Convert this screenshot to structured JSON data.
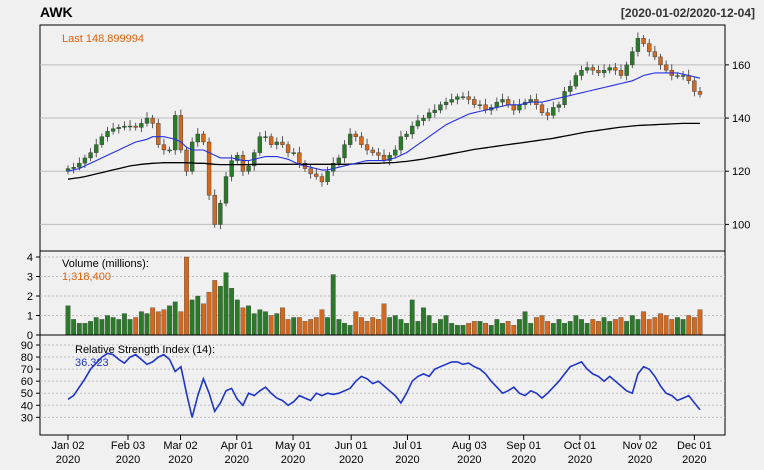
{
  "chart_data": {
    "type": "candlestick",
    "symbol": "AWK",
    "date_range": "[2020-01-02/2020-12-04]",
    "colors": {
      "background": "#f0f0f0",
      "up": "#2a7a2a",
      "down": "#d2691e",
      "sma50": "#2430e0",
      "sma200": "#000000",
      "rsi": "#1f35c8",
      "last_label": "#e0620d",
      "grid": "#bdbdbd"
    },
    "price_panel": {
      "last_label": "Last 148.899994",
      "ylim": [
        90,
        175
      ],
      "y_ticks": [
        100,
        120,
        140,
        160
      ],
      "grid": true,
      "close": [
        121,
        121.5,
        123,
        125,
        127,
        130,
        133,
        135,
        136,
        136.5,
        137,
        137,
        136.5,
        138,
        140,
        138,
        130,
        128,
        128,
        141,
        128,
        120,
        131,
        134,
        131,
        111,
        100,
        108,
        118,
        124,
        126,
        120,
        122,
        127,
        133,
        133,
        130,
        131,
        130,
        127,
        127,
        123,
        121,
        119,
        118,
        116,
        120,
        123,
        125,
        130,
        134,
        133,
        130,
        128,
        127,
        126,
        124,
        126,
        128,
        133,
        134,
        137,
        139,
        140,
        142,
        143,
        145,
        146,
        147,
        148,
        148,
        147,
        145,
        145,
        143,
        144,
        146,
        147,
        145,
        143,
        145,
        146,
        147,
        145,
        142,
        141,
        144,
        145,
        150,
        152,
        156,
        158,
        159,
        158,
        157,
        158,
        159,
        158,
        156,
        160,
        165,
        170,
        168,
        165,
        163,
        160,
        158,
        156,
        156,
        156,
        154,
        150,
        148.9
      ],
      "sma50": [
        120,
        120.5,
        121,
        122,
        123,
        124,
        125,
        126,
        127,
        128,
        129,
        130,
        131,
        131.5,
        132,
        133,
        133,
        133,
        132.5,
        132,
        131,
        129,
        128,
        128,
        128,
        127,
        126,
        125,
        125,
        125,
        124.5,
        124,
        124,
        124.5,
        125,
        125.5,
        125.5,
        125.5,
        125,
        124.5,
        123.5,
        122.5,
        122,
        121.5,
        121,
        120.5,
        120.5,
        121,
        121.5,
        122,
        122.5,
        123,
        123.5,
        124,
        124,
        124,
        124,
        124.5,
        125,
        126,
        127,
        128.5,
        130,
        131.5,
        133,
        134.5,
        136,
        137.5,
        138.5,
        139.5,
        140.5,
        141.5,
        142,
        142.5,
        143,
        143.5,
        144,
        144.5,
        145,
        145,
        145,
        145.5,
        146,
        146,
        146,
        146.5,
        147,
        147.5,
        148,
        148.5,
        149,
        149.5,
        150,
        150.5,
        151,
        151.5,
        152,
        152.5,
        153,
        153.5,
        154,
        155,
        156,
        156.5,
        157,
        157,
        157,
        157,
        157,
        156.5,
        156,
        155.5,
        155
      ],
      "sma200": [
        117,
        117.3,
        117.6,
        118,
        118.5,
        119,
        119.5,
        120,
        120.5,
        121,
        121.5,
        122,
        122.3,
        122.6,
        122.8,
        123,
        123.1,
        123.2,
        123.2,
        123.2,
        123.2,
        123.2,
        123.1,
        123,
        123,
        122.8,
        122.6,
        122.5,
        122.5,
        122.5,
        122.5,
        122.5,
        122.5,
        122.6,
        122.6,
        122.6,
        122.6,
        122.6,
        122.6,
        122.6,
        122.6,
        122.6,
        122.6,
        122.6,
        122.6,
        122.6,
        122.6,
        122.6,
        122.6,
        122.6,
        122.7,
        122.8,
        122.9,
        123,
        123,
        123,
        123.1,
        123.2,
        123.3,
        123.5,
        123.7,
        124,
        124.3,
        124.6,
        125,
        125.4,
        125.8,
        126.2,
        126.6,
        127,
        127.4,
        127.8,
        128.2,
        128.5,
        128.8,
        129.1,
        129.4,
        129.7,
        130,
        130.3,
        130.6,
        130.9,
        131.2,
        131.5,
        131.8,
        132.1,
        132.4,
        132.8,
        133.2,
        133.6,
        134,
        134.4,
        134.8,
        135.1,
        135.4,
        135.7,
        136,
        136.3,
        136.6,
        136.8,
        137,
        137.2,
        137.3,
        137.4,
        137.5,
        137.6,
        137.7,
        137.8,
        137.9,
        138,
        138,
        138,
        138
      ]
    },
    "volume_panel": {
      "title": "Volume (millions):",
      "last_label": "1,318,400",
      "ylim": [
        0,
        4
      ],
      "y_ticks": [
        0,
        1,
        2,
        3,
        4
      ],
      "values": [
        1.5,
        0.8,
        0.6,
        0.6,
        0.7,
        0.9,
        0.8,
        1.0,
        0.9,
        0.8,
        1.1,
        0.8,
        0.9,
        1.2,
        1.1,
        1.4,
        1.2,
        1.3,
        1.5,
        1.7,
        1.2,
        4.0,
        1.8,
        2.0,
        1.6,
        2.2,
        2.8,
        2.5,
        3.2,
        2.4,
        1.8,
        1.4,
        1.5,
        1.1,
        1.3,
        1.2,
        1.0,
        1.1,
        1.4,
        0.8,
        0.9,
        0.9,
        0.7,
        0.8,
        0.9,
        1.3,
        0.9,
        3.1,
        0.8,
        0.6,
        0.5,
        1.2,
        0.9,
        0.7,
        0.9,
        0.8,
        1.6,
        0.9,
        1.0,
        0.8,
        0.6,
        1.8,
        0.7,
        1.4,
        1.0,
        0.6,
        0.8,
        1.0,
        0.6,
        0.5,
        0.5,
        0.6,
        0.7,
        0.7,
        0.6,
        0.5,
        0.8,
        0.6,
        0.7,
        0.5,
        0.8,
        1.2,
        0.6,
        0.9,
        1.0,
        0.7,
        0.6,
        0.8,
        0.6,
        0.7,
        1.0,
        0.8,
        0.6,
        0.8,
        0.7,
        0.9,
        0.7,
        0.8,
        0.9,
        0.7,
        1.0,
        0.8,
        1.2,
        0.8,
        0.9,
        1.1,
        1.0,
        0.8,
        0.9,
        0.8,
        1.0,
        0.9,
        1.3
      ]
    },
    "rsi_panel": {
      "title": "Relative Strength Index (14):",
      "last_label": "36.323",
      "ylim": [
        22,
        90
      ],
      "y_ticks": [
        30,
        40,
        50,
        60,
        70,
        80,
        90
      ],
      "values": [
        45,
        48,
        55,
        62,
        70,
        75,
        80,
        83,
        82,
        78,
        75,
        80,
        82,
        78,
        74,
        76,
        80,
        82,
        78,
        68,
        72,
        50,
        30,
        48,
        62,
        50,
        35,
        42,
        52,
        54,
        45,
        40,
        50,
        48,
        52,
        55,
        50,
        46,
        44,
        40,
        43,
        48,
        46,
        44,
        50,
        48,
        50,
        49,
        50,
        52,
        54,
        60,
        64,
        62,
        58,
        60,
        56,
        52,
        48,
        42,
        50,
        60,
        64,
        66,
        64,
        70,
        72,
        74,
        76,
        76,
        74,
        75,
        72,
        70,
        66,
        60,
        55,
        50,
        52,
        55,
        50,
        48,
        52,
        50,
        46,
        50,
        55,
        60,
        66,
        72,
        74,
        76,
        70,
        66,
        64,
        60,
        64,
        60,
        56,
        52,
        50,
        66,
        72,
        70,
        64,
        56,
        50,
        48,
        44,
        46,
        48,
        42,
        36.3
      ]
    },
    "x_ticks": [
      {
        "date": "2020-01-02",
        "label1": "Jan 02",
        "label2": "2020"
      },
      {
        "date": "2020-02-03",
        "label1": "Feb 03",
        "label2": "2020"
      },
      {
        "date": "2020-03-02",
        "label1": "Mar 02",
        "label2": "2020"
      },
      {
        "date": "2020-04-01",
        "label1": "Apr 01",
        "label2": "2020"
      },
      {
        "date": "2020-05-01",
        "label1": "May 01",
        "label2": "2020"
      },
      {
        "date": "2020-06-01",
        "label1": "Jun 01",
        "label2": "2020"
      },
      {
        "date": "2020-07-01",
        "label1": "Jul 01",
        "label2": "2020"
      },
      {
        "date": "2020-08-03",
        "label1": "Aug 03",
        "label2": "2020"
      },
      {
        "date": "2020-09-01",
        "label1": "Sep 01",
        "label2": "2020"
      },
      {
        "date": "2020-10-01",
        "label1": "Oct 01",
        "label2": "2020"
      },
      {
        "date": "2020-11-02",
        "label1": "Nov 02",
        "label2": "2020"
      },
      {
        "date": "2020-12-01",
        "label1": "Dec 01",
        "label2": "2020"
      }
    ]
  }
}
